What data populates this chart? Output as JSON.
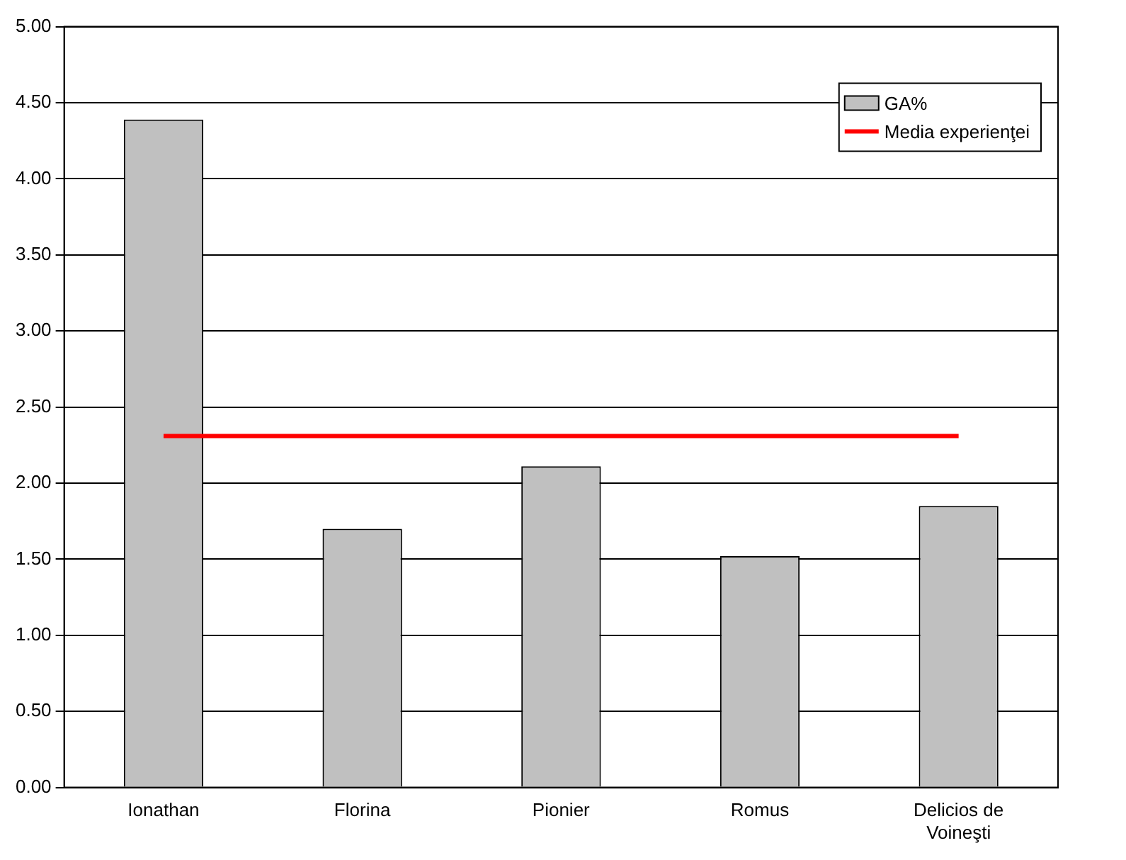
{
  "chart_data": {
    "type": "bar",
    "categories": [
      "Ionathan",
      "Florina",
      "Pionier",
      "Romus",
      "Delicios de Voineşti"
    ],
    "series": [
      {
        "name": "GA%",
        "color": "#c0c0c0",
        "values": [
          4.39,
          1.7,
          2.11,
          1.52,
          1.85
        ]
      },
      {
        "name": "Media experienţei",
        "type": "line",
        "color": "#ff0000",
        "values": [
          2.31,
          2.31,
          2.31,
          2.31,
          2.31
        ]
      }
    ],
    "ylim": [
      0,
      5
    ],
    "yticks": [
      {
        "value": 0,
        "label": "0.00"
      },
      {
        "value": 0.5,
        "label": "0.50"
      },
      {
        "value": 1,
        "label": "1.00"
      },
      {
        "value": 1.5,
        "label": "1.50"
      },
      {
        "value": 2,
        "label": "2.00"
      },
      {
        "value": 2.5,
        "label": "2.50"
      },
      {
        "value": 3,
        "label": "3.00"
      },
      {
        "value": 3.5,
        "label": "3.50"
      },
      {
        "value": 4,
        "label": "4.00"
      },
      {
        "value": 4.5,
        "label": "4.50"
      },
      {
        "value": 5,
        "label": "5.00"
      }
    ],
    "grid": "y",
    "legend": "top right",
    "marker": "none"
  }
}
